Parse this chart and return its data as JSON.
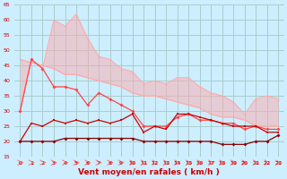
{
  "x": [
    0,
    1,
    2,
    3,
    4,
    5,
    6,
    7,
    8,
    9,
    10,
    11,
    12,
    13,
    14,
    15,
    16,
    17,
    18,
    19,
    20,
    21,
    22,
    23
  ],
  "line_rafales_max": [
    30,
    47,
    44,
    60,
    58,
    62,
    54,
    48,
    47,
    44,
    43,
    39,
    40,
    39,
    41,
    41,
    38,
    36,
    35,
    33,
    29,
    34,
    35,
    34
  ],
  "line_rafales_mean": [
    47,
    46,
    45,
    44,
    42,
    42,
    41,
    40,
    39,
    38,
    36,
    35,
    35,
    34,
    33,
    32,
    31,
    29,
    28,
    28,
    27,
    25,
    25,
    25
  ],
  "line_vent_max": [
    30,
    47,
    44,
    38,
    38,
    37,
    32,
    36,
    34,
    32,
    30,
    25,
    25,
    25,
    28,
    29,
    27,
    27,
    26,
    26,
    24,
    25,
    24,
    24
  ],
  "line_vent_mean": [
    20,
    26,
    25,
    27,
    26,
    27,
    26,
    27,
    26,
    27,
    29,
    23,
    25,
    24,
    29,
    29,
    28,
    27,
    26,
    25,
    25,
    25,
    23,
    23
  ],
  "line_vent_min": [
    20,
    20,
    20,
    20,
    21,
    21,
    21,
    21,
    21,
    21,
    21,
    20,
    20,
    20,
    20,
    20,
    20,
    20,
    19,
    19,
    19,
    20,
    20,
    22
  ],
  "background": "#cceeff",
  "grid_color": "#aacccc",
  "color_rafales": "#ffaaaa",
  "color_vent_max": "#ff4444",
  "color_vent_mean": "#cc0000",
  "color_vent_min": "#880000",
  "xlabel": "Vent moyen/en rafales ( km/h )",
  "ylim": [
    15,
    65
  ],
  "xlim_min": 0,
  "xlim_max": 23,
  "yticks": [
    15,
    20,
    25,
    30,
    35,
    40,
    45,
    50,
    55,
    60,
    65
  ],
  "xticks": [
    0,
    1,
    2,
    3,
    4,
    5,
    6,
    7,
    8,
    9,
    10,
    11,
    12,
    13,
    14,
    15,
    16,
    17,
    18,
    19,
    20,
    21,
    22,
    23
  ]
}
